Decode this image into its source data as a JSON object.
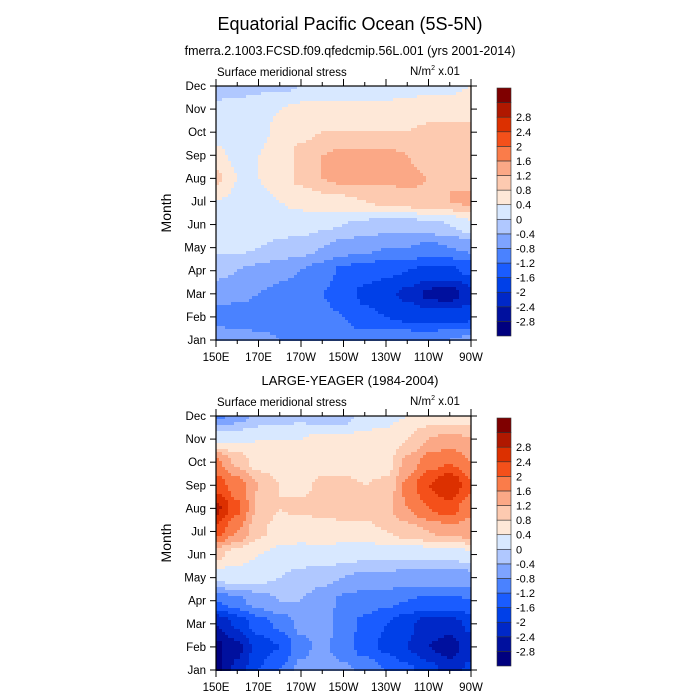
{
  "title": "Equatorial Pacific Ocean (5S-5N)",
  "subtitle": "fmerra.2.1003.FCSD.f09.qfedcmip.56L.001 (yrs 2001-2014)",
  "colors": {
    "levels": [
      "#00007f",
      "#00109e",
      "#0028c8",
      "#0040e8",
      "#1a5cff",
      "#4a82ff",
      "#7ea4ff",
      "#b0c8ff",
      "#d8e8ff",
      "#fee8d8",
      "#fdcab0",
      "#fba886",
      "#fa7c4a",
      "#f4501a",
      "#dc3000",
      "#b01800",
      "#7f0000"
    ]
  },
  "chart_data": [
    {
      "type": "heatmap",
      "panel_title": "",
      "left_string": "Surface meridional stress",
      "right_string": "N/m",
      "right_string_sup": "2",
      "right_string_suffix": " x.01",
      "xlabel": "",
      "ylabel": "Month",
      "x_ticks": [
        "150E",
        "170E",
        "170W",
        "150W",
        "130W",
        "110W",
        "90W"
      ],
      "x_range_deg_east": [
        150,
        270
      ],
      "y_ticks": [
        "Jan",
        "Feb",
        "Mar",
        "Apr",
        "May",
        "Jun",
        "Jul",
        "Aug",
        "Sep",
        "Oct",
        "Nov",
        "Dec"
      ],
      "colorbar_levels": [
        -2.8,
        -2.4,
        -2,
        -1.6,
        -1.2,
        -0.8,
        -0.4,
        0,
        0.4,
        0.8,
        1.2,
        1.6,
        2,
        2.4,
        2.8
      ],
      "x_lon": [
        150,
        160,
        170,
        180,
        190,
        200,
        210,
        220,
        230,
        240,
        250,
        260,
        270
      ],
      "values": [
        [
          -0.5,
          -0.6,
          -0.7,
          -0.8,
          -0.9,
          -1.0,
          -1.0,
          -1.0,
          -0.9,
          -0.9,
          -0.9,
          -0.8,
          -0.7
        ],
        [
          -1.0,
          -1.0,
          -1.0,
          -1.0,
          -1.0,
          -1.1,
          -1.2,
          -1.5,
          -1.6,
          -1.7,
          -1.8,
          -1.8,
          -1.7
        ],
        [
          -0.6,
          -0.7,
          -0.8,
          -0.9,
          -1.0,
          -1.2,
          -1.4,
          -1.7,
          -1.9,
          -2.1,
          -2.5,
          -2.6,
          -2.2
        ],
        [
          -0.3,
          -0.4,
          -0.5,
          -0.7,
          -0.8,
          -1.0,
          -1.3,
          -1.4,
          -1.5,
          -1.6,
          -1.7,
          -1.7,
          -1.5
        ],
        [
          0.1,
          0.1,
          0.0,
          -0.1,
          -0.2,
          -0.4,
          -0.6,
          -0.7,
          -0.8,
          -0.8,
          -0.9,
          -0.8,
          -0.7
        ],
        [
          0.3,
          0.3,
          0.3,
          0.2,
          0.2,
          0.1,
          0.0,
          -0.1,
          -0.2,
          -0.2,
          -0.1,
          0.0,
          0.3
        ],
        [
          0.4,
          0.3,
          0.3,
          0.4,
          0.5,
          0.6,
          0.7,
          0.8,
          0.9,
          1.0,
          1.1,
          1.2,
          1.3
        ],
        [
          0.9,
          0.4,
          0.4,
          0.6,
          0.9,
          1.2,
          1.3,
          1.3,
          1.3,
          1.3,
          1.2,
          1.2,
          1.1
        ],
        [
          0.5,
          0.3,
          0.4,
          0.6,
          0.9,
          1.2,
          1.3,
          1.3,
          1.3,
          1.2,
          1.0,
          1.0,
          1.0
        ],
        [
          0.2,
          0.2,
          0.3,
          0.5,
          0.7,
          0.8,
          0.8,
          0.8,
          0.8,
          0.8,
          0.9,
          0.9,
          0.9
        ],
        [
          0.1,
          0.2,
          0.3,
          0.4,
          0.5,
          0.5,
          0.5,
          0.5,
          0.5,
          0.6,
          0.6,
          0.6,
          0.7
        ],
        [
          -0.2,
          -0.2,
          -0.1,
          -0.1,
          0.0,
          0.1,
          0.1,
          0.2,
          0.2,
          0.2,
          0.3,
          0.3,
          0.4
        ]
      ]
    },
    {
      "type": "heatmap",
      "panel_title": "LARGE-YEAGER (1984-2004)",
      "left_string": "Surface meridional stress",
      "right_string": "N/m",
      "right_string_sup": "2",
      "right_string_suffix": " x.01",
      "xlabel": "",
      "ylabel": "Month",
      "x_ticks": [
        "150E",
        "170E",
        "170W",
        "150W",
        "130W",
        "110W",
        "90W"
      ],
      "x_range_deg_east": [
        150,
        270
      ],
      "y_ticks": [
        "Jan",
        "Feb",
        "Mar",
        "Apr",
        "May",
        "Jun",
        "Jul",
        "Aug",
        "Sep",
        "Oct",
        "Nov",
        "Dec"
      ],
      "colorbar_levels": [
        -2.8,
        -2.4,
        -2,
        -1.6,
        -1.2,
        -0.8,
        -0.4,
        0,
        0.4,
        0.8,
        1.2,
        1.6,
        2,
        2.4,
        2.8
      ],
      "x_lon": [
        150,
        160,
        170,
        180,
        190,
        200,
        210,
        220,
        230,
        240,
        250,
        260,
        270
      ],
      "values": [
        [
          -2.9,
          -2.3,
          -1.6,
          -1.2,
          -0.7,
          -0.6,
          -0.7,
          -0.9,
          -1.2,
          -1.5,
          -1.8,
          -2.2,
          -1.9
        ],
        [
          -2.9,
          -2.5,
          -1.8,
          -1.6,
          -0.9,
          -0.7,
          -1.0,
          -1.4,
          -1.7,
          -2.0,
          -2.4,
          -2.6,
          -2.2
        ],
        [
          -2.4,
          -1.9,
          -1.4,
          -1.1,
          -0.7,
          -0.6,
          -1.0,
          -1.3,
          -1.6,
          -1.9,
          -2.2,
          -2.2,
          -1.9
        ],
        [
          -1.2,
          -0.9,
          -0.6,
          -0.4,
          -0.4,
          -0.6,
          -0.9,
          -1.0,
          -1.1,
          -1.2,
          -1.3,
          -1.3,
          -1.2
        ],
        [
          0.1,
          0.2,
          0.1,
          0.0,
          -0.2,
          -0.3,
          -0.4,
          -0.5,
          -0.5,
          -0.6,
          -0.6,
          -0.6,
          -0.6
        ],
        [
          0.9,
          0.6,
          0.4,
          0.3,
          0.3,
          0.3,
          0.2,
          0.1,
          0.1,
          0.1,
          0.1,
          0.1,
          0.3
        ],
        [
          2.2,
          1.6,
          0.9,
          0.6,
          0.5,
          0.6,
          0.6,
          0.7,
          0.8,
          1.0,
          1.2,
          1.4,
          1.4
        ],
        [
          2.9,
          2.1,
          1.1,
          0.8,
          0.9,
          0.9,
          1.0,
          0.9,
          1.1,
          1.6,
          2.0,
          2.2,
          1.7
        ],
        [
          2.2,
          1.8,
          1.2,
          0.8,
          0.7,
          0.9,
          0.9,
          0.8,
          0.9,
          1.7,
          2.4,
          2.8,
          2.1
        ],
        [
          1.7,
          1.1,
          0.6,
          0.5,
          0.5,
          0.6,
          0.6,
          0.5,
          0.6,
          1.3,
          1.8,
          2.0,
          1.6
        ],
        [
          0.3,
          0.3,
          0.4,
          0.4,
          0.4,
          0.5,
          0.5,
          0.5,
          0.5,
          0.8,
          1.2,
          1.3,
          1.2
        ],
        [
          -0.9,
          -0.6,
          -0.3,
          -0.2,
          -0.1,
          -0.3,
          -0.2,
          0.2,
          0.3,
          0.4,
          0.5,
          0.5,
          0.5
        ]
      ]
    }
  ]
}
